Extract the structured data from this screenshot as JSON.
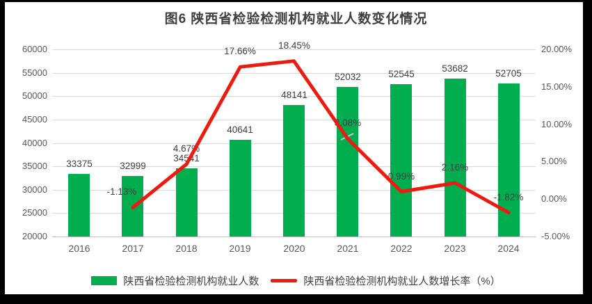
{
  "window": {
    "frame_color": "#000000",
    "plot_background": "#ffffff"
  },
  "chart_data": {
    "type": "combo_bar_line",
    "title": "图6 陕西省检验检测机构就业人数变化情况",
    "categories": [
      "2016",
      "2017",
      "2018",
      "2019",
      "2020",
      "2021",
      "2022",
      "2023",
      "2024"
    ],
    "series": [
      {
        "name": "陕西省检验检测机构就业人数",
        "type": "bar",
        "axis": "left",
        "color": "#00AE50",
        "values": [
          33375,
          32999,
          34541,
          40641,
          48141,
          52032,
          52545,
          53682,
          52705
        ],
        "data_labels": [
          "33375",
          "32999",
          "34541",
          "40641",
          "48141",
          "52032",
          "52545",
          "53682",
          "52705"
        ]
      },
      {
        "name": "陕西省检验检测机构就业人数增长率（%）",
        "type": "line",
        "axis": "right",
        "color": "#EC1B10",
        "values": [
          null,
          -1.13,
          4.67,
          17.66,
          18.45,
          8.08,
          0.99,
          2.16,
          -1.82
        ],
        "data_labels": [
          "",
          "-1.13%",
          "4.67%",
          "17.66%",
          "18.45%",
          "8.08%",
          "0.99%",
          "2.16%",
          "-1.82%"
        ]
      }
    ],
    "left_axis": {
      "min": 20000,
      "max": 60000,
      "step": 5000,
      "tick_labels": [
        "20000",
        "25000",
        "30000",
        "35000",
        "40000",
        "45000",
        "50000",
        "55000",
        "60000"
      ]
    },
    "right_axis": {
      "min": -5,
      "max": 20,
      "step": 5,
      "tick_labels": [
        "-5.00%",
        "0.00%",
        "5.00%",
        "10.00%",
        "15.00%",
        "20.00%"
      ]
    },
    "grid": true,
    "legend_position": "bottom",
    "colors": {
      "title_text": "#3f3f3f",
      "label_text": "#404040",
      "tick_text": "#595959",
      "gridline": "#d9d9d9",
      "axis_line": "#bdbdbd"
    }
  }
}
